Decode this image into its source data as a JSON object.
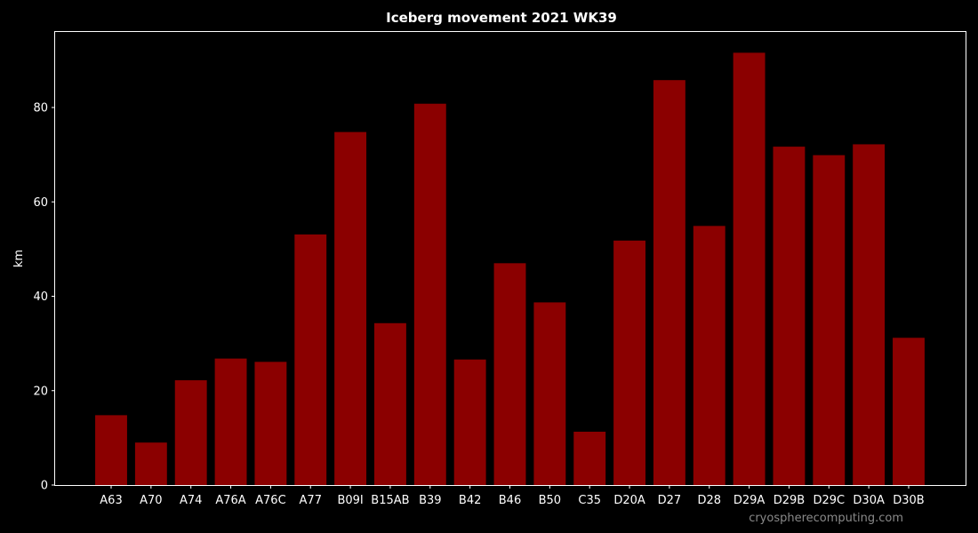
{
  "chart_data": {
    "type": "bar",
    "title": "Iceberg movement 2021 WK39",
    "xlabel": "",
    "ylabel": "km",
    "categories": [
      "A63",
      "A70",
      "A74",
      "A76A",
      "A76C",
      "A77",
      "B09I",
      "B15AB",
      "B39",
      "B42",
      "B46",
      "B50",
      "C35",
      "D20A",
      "D27",
      "D28",
      "D29A",
      "D29B",
      "D29C",
      "D30A",
      "D30B"
    ],
    "values": [
      14.8,
      9.0,
      22.2,
      26.8,
      26.1,
      53.1,
      74.8,
      34.3,
      80.8,
      26.6,
      47.0,
      38.7,
      11.3,
      51.8,
      85.8,
      54.9,
      91.6,
      71.7,
      69.9,
      72.2,
      31.2
    ],
    "ylim": [
      0,
      96
    ],
    "yticks": [
      0,
      20,
      40,
      60,
      80
    ],
    "grid": false,
    "bar_color": "#8b0000",
    "background_color": "#000000",
    "axis_color": "#ffffff"
  },
  "watermark": "cryospherecomputing.com"
}
